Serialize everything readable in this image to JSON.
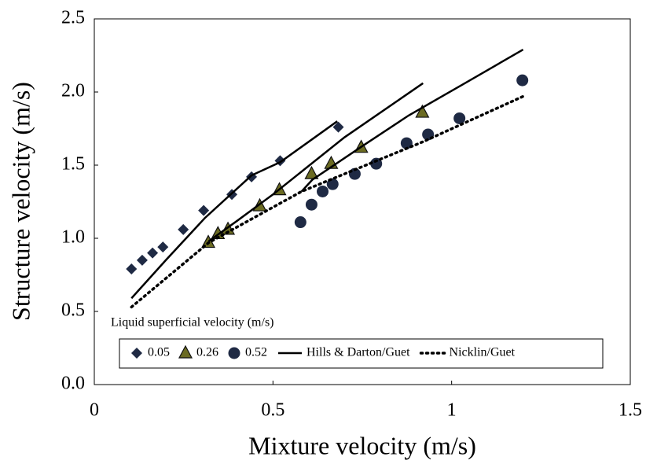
{
  "chart_data": {
    "type": "scatter",
    "x_label": "Mixture velocity (m/s)",
    "y_label": "Structure velocity (m/s)",
    "legend_title": "Liquid superficial velocity (m/s)",
    "xlim": [
      0,
      1.5
    ],
    "ylim": [
      0,
      2.5
    ],
    "xticks": [
      0,
      0.5,
      1,
      1.5
    ],
    "yticks": [
      {
        "value": 0,
        "label": "0.0"
      },
      0.5,
      {
        "value": 1,
        "label": "1.0"
      },
      1.5,
      {
        "value": 2,
        "label": "2.0"
      },
      2.5
    ],
    "series": [
      {
        "name": "0.05",
        "type": "scatter",
        "marker": "diamond",
        "color": "#1f2a44",
        "x": [
          0.104,
          0.134,
          0.163,
          0.192,
          0.249,
          0.306,
          0.385,
          0.44,
          0.52,
          0.683
        ],
        "values": [
          0.79,
          0.85,
          0.9,
          0.94,
          1.06,
          1.19,
          1.3,
          1.42,
          1.53,
          1.76
        ]
      },
      {
        "name": "0.26",
        "type": "scatter",
        "marker": "triangle",
        "color": "#6b6b22",
        "x": [
          0.319,
          0.346,
          0.374,
          0.463,
          0.518,
          0.608,
          0.663,
          0.747,
          0.918
        ],
        "values": [
          0.97,
          1.03,
          1.06,
          1.22,
          1.33,
          1.44,
          1.51,
          1.62,
          1.86
        ]
      },
      {
        "name": "0.52",
        "type": "scatter",
        "marker": "circle",
        "color": "#1f2a44",
        "x": [
          0.577,
          0.608,
          0.639,
          0.667,
          0.729,
          0.789,
          0.874,
          0.934,
          1.022,
          1.198
        ],
        "values": [
          1.11,
          1.23,
          1.32,
          1.37,
          1.44,
          1.51,
          1.65,
          1.71,
          1.82,
          2.08
        ]
      },
      {
        "name": "Hills & Darton/Guet",
        "type": "line",
        "dash": "solid",
        "color": "#000000",
        "x": [
          0.104,
          0.2,
          0.31,
          0.44,
          0.52,
          0.68,
          null,
          0.32,
          0.4,
          0.5,
          0.7,
          0.92,
          null,
          0.58,
          0.61,
          0.75,
          0.88,
          1.03,
          1.2
        ],
        "values": [
          0.59,
          0.85,
          1.14,
          1.43,
          1.52,
          1.8,
          null,
          0.98,
          1.12,
          1.3,
          1.69,
          2.06,
          null,
          1.32,
          1.4,
          1.63,
          1.84,
          2.05,
          2.29
        ]
      },
      {
        "name": "Nicklin/Guet",
        "type": "line",
        "dash": "dotted",
        "color": "#000000",
        "x": [
          0.104,
          0.32,
          0.58,
          0.92,
          1.2
        ],
        "values": [
          0.53,
          0.97,
          1.32,
          1.66,
          1.97
        ]
      }
    ]
  }
}
